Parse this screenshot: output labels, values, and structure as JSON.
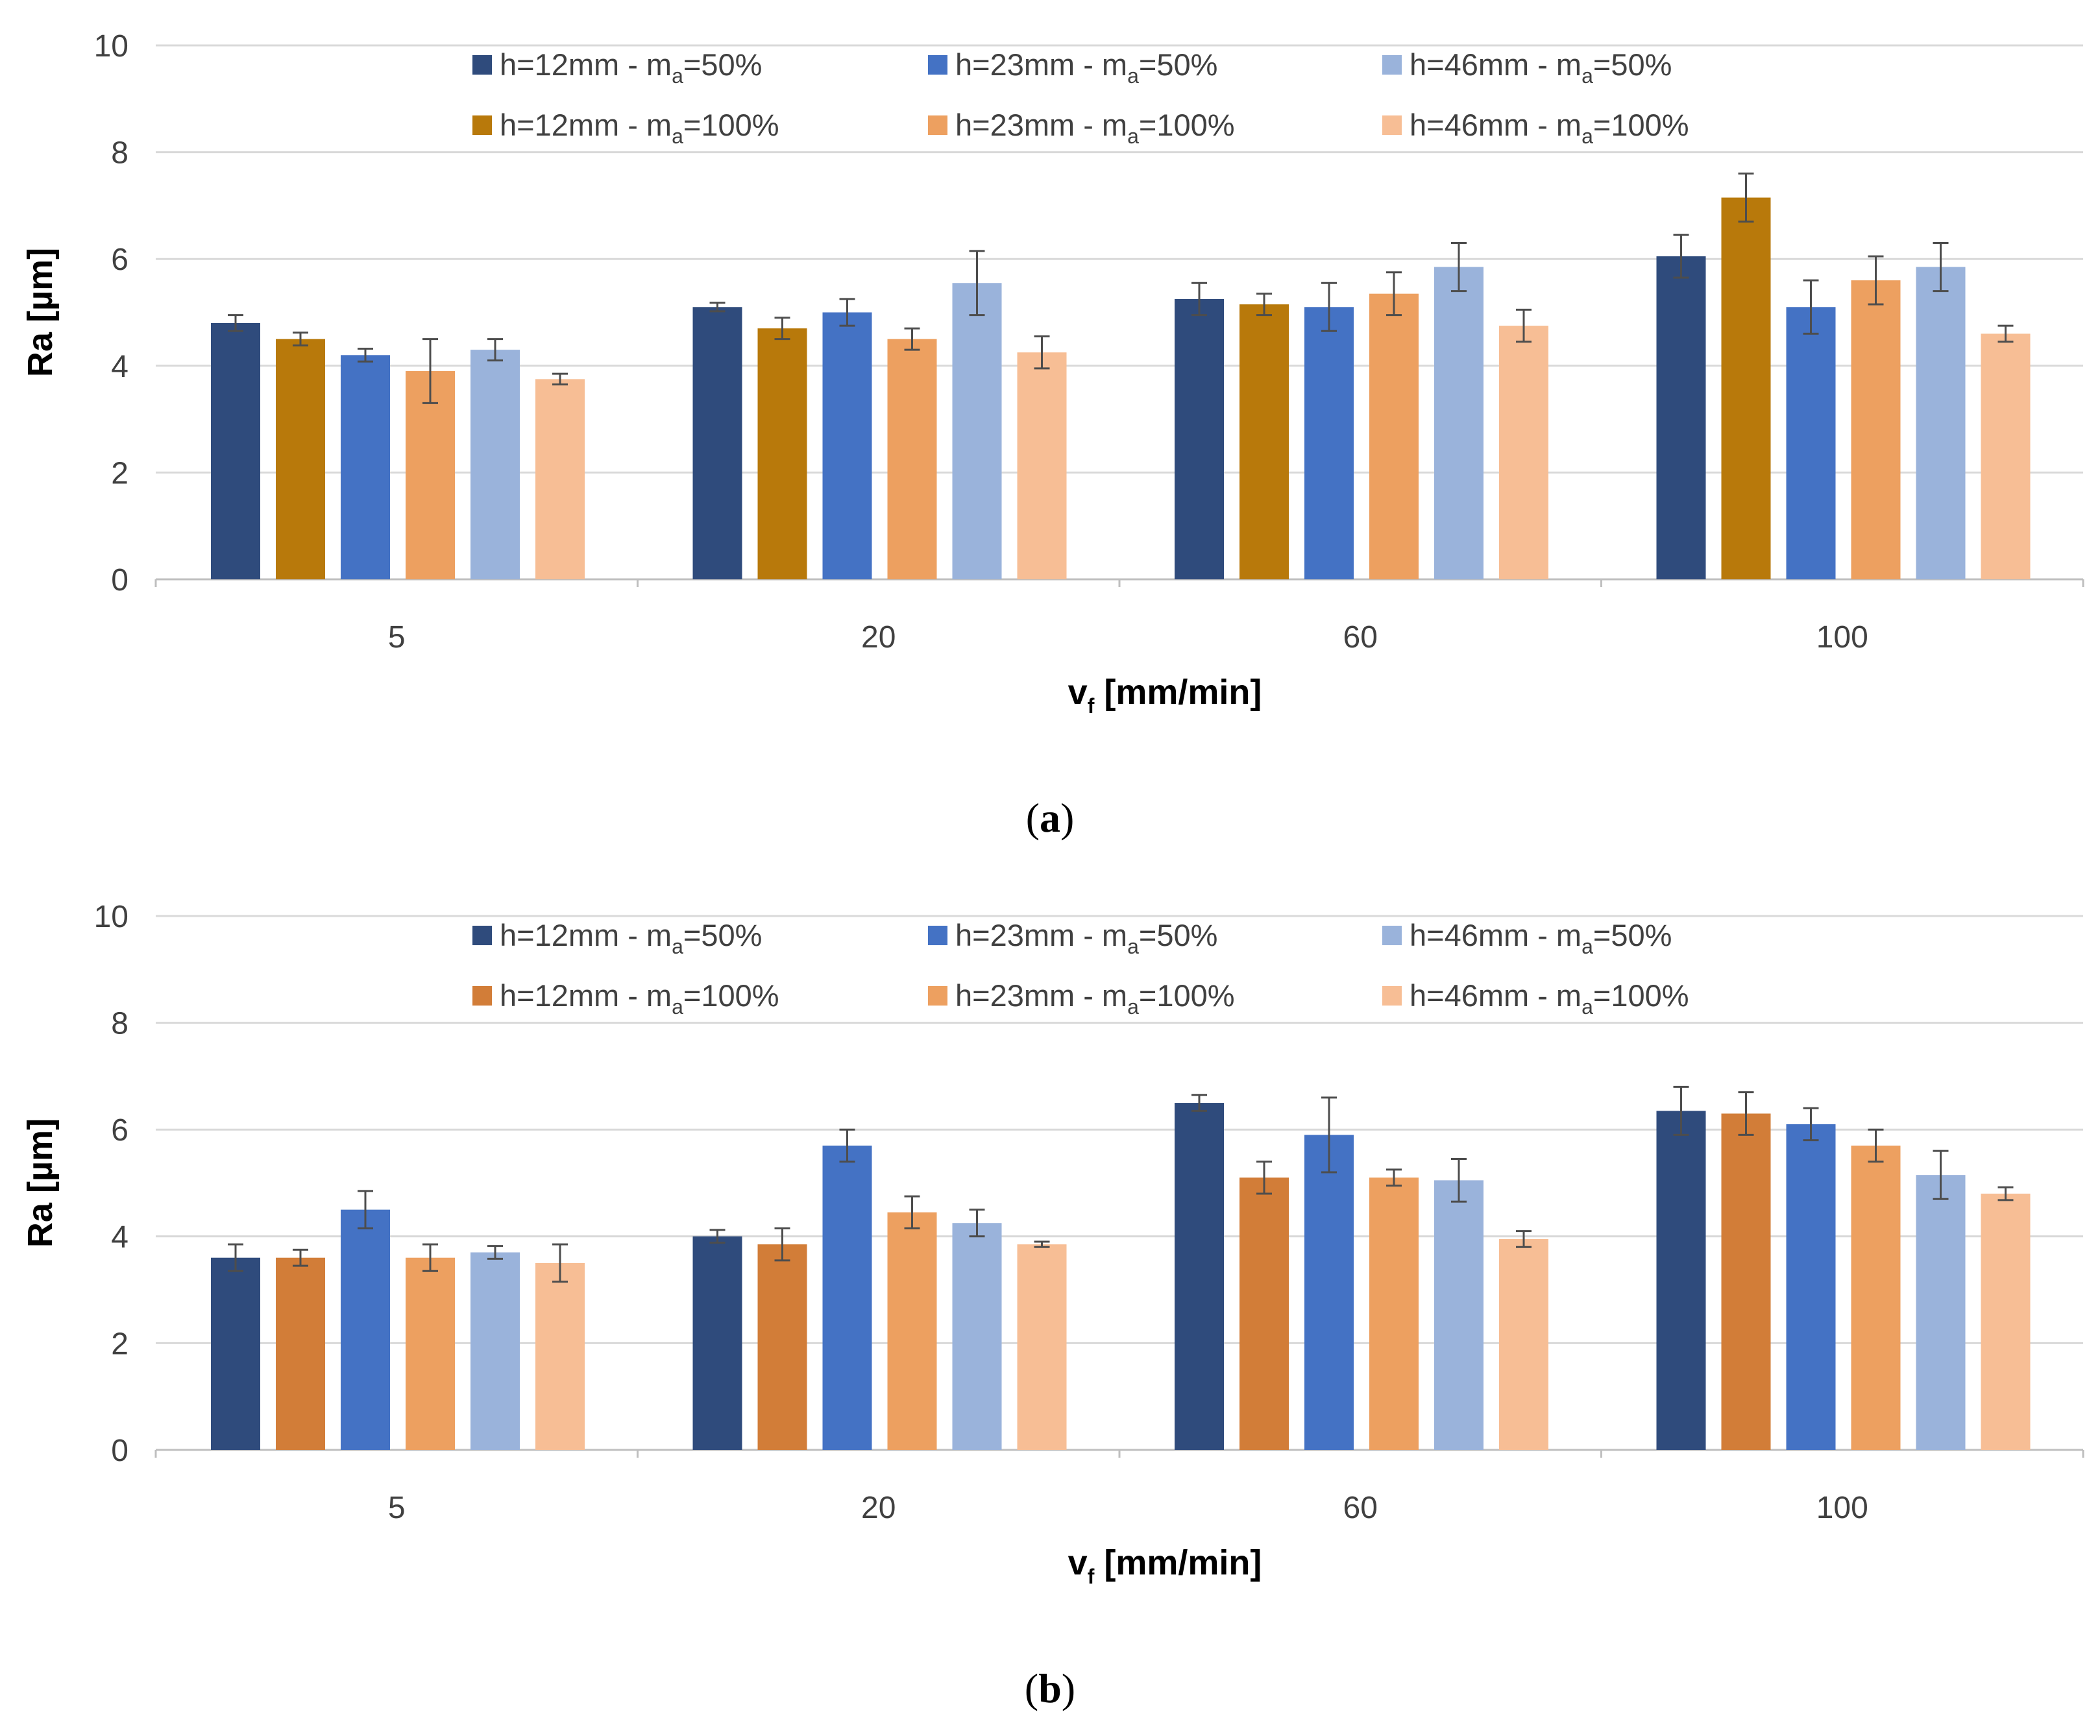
{
  "colors": {
    "h12_50": "#2F4B7C",
    "h23_50": "#4472C4",
    "h46_50": "#9AB3DB",
    "h12_100_a": "#B8790B",
    "h12_100_b": "#D27D38",
    "h23_100": "#EDA060",
    "h46_100": "#F7BE95",
    "grid": "#D9D9D9",
    "axis": "#BFBFBF",
    "error": "#4D4D4D"
  },
  "legend_entries": [
    {
      "label_main": "h=12mm - m",
      "label_sub": "a",
      "label_tail": "=50%"
    },
    {
      "label_main": "h=23mm - m",
      "label_sub": "a",
      "label_tail": "=50%"
    },
    {
      "label_main": "h=46mm - m",
      "label_sub": "a",
      "label_tail": "=50%"
    },
    {
      "label_main": "h=12mm - m",
      "label_sub": "a",
      "label_tail": "=100%"
    },
    {
      "label_main": "h=23mm - m",
      "label_sub": "a",
      "label_tail": "=100%"
    },
    {
      "label_main": "h=46mm - m",
      "label_sub": "a",
      "label_tail": "=100%"
    }
  ],
  "panels": [
    {
      "caption_open": "(",
      "caption_letter": "a",
      "caption_close": ")",
      "xlabel_main": "v",
      "xlabel_sub": "f",
      "xlabel_tail": " [mm/min]",
      "ylabel": "Ra [µm]"
    },
    {
      "caption_open": "(",
      "caption_letter": "b",
      "caption_close": ")",
      "xlabel_main": "v",
      "xlabel_sub": "f",
      "xlabel_tail": " [mm/min]",
      "ylabel": "Ra [µm]"
    }
  ],
  "chart_data": [
    {
      "type": "bar",
      "title": "",
      "xlabel": "vf [mm/min]",
      "ylabel": "Ra [µm]",
      "ylim": [
        0,
        10
      ],
      "yticks": [
        0,
        2,
        4,
        6,
        8,
        10
      ],
      "categories": [
        "5",
        "20",
        "60",
        "100"
      ],
      "legend_position": "top",
      "series": [
        {
          "name": "h=12mm - ma=50%",
          "color_key": "h12_50",
          "values": [
            4.8,
            5.1,
            5.25,
            6.05
          ],
          "errors": [
            0.15,
            0.08,
            0.3,
            0.4
          ]
        },
        {
          "name": "h=12mm - ma=100%",
          "color_key": "h12_100_a",
          "values": [
            4.5,
            4.7,
            5.15,
            7.15
          ],
          "errors": [
            0.12,
            0.2,
            0.2,
            0.45
          ]
        },
        {
          "name": "h=23mm - ma=50%",
          "color_key": "h23_50",
          "values": [
            4.2,
            5.0,
            5.1,
            5.1
          ],
          "errors": [
            0.12,
            0.25,
            0.45,
            0.5
          ]
        },
        {
          "name": "h=23mm - ma=100%",
          "color_key": "h23_100",
          "values": [
            3.9,
            4.5,
            5.35,
            5.6
          ],
          "errors": [
            0.6,
            0.2,
            0.4,
            0.45
          ]
        },
        {
          "name": "h=46mm - ma=50%",
          "color_key": "h46_50",
          "values": [
            4.3,
            5.55,
            5.85,
            5.85
          ],
          "errors": [
            0.2,
            0.6,
            0.45,
            0.45
          ]
        },
        {
          "name": "h=46mm - ma=100%",
          "color_key": "h46_100",
          "values": [
            3.75,
            4.25,
            4.75,
            4.6
          ],
          "errors": [
            0.1,
            0.3,
            0.3,
            0.15
          ]
        }
      ]
    },
    {
      "type": "bar",
      "title": "",
      "xlabel": "vf [mm/min]",
      "ylabel": "Ra [µm]",
      "ylim": [
        0,
        10
      ],
      "yticks": [
        0,
        2,
        4,
        6,
        8,
        10
      ],
      "categories": [
        "5",
        "20",
        "60",
        "100"
      ],
      "legend_position": "top",
      "series": [
        {
          "name": "h=12mm - ma=50%",
          "color_key": "h12_50",
          "values": [
            3.6,
            4.0,
            6.5,
            6.35
          ],
          "errors": [
            0.25,
            0.12,
            0.15,
            0.45
          ]
        },
        {
          "name": "h=12mm - ma=100%",
          "color_key": "h12_100_b",
          "values": [
            3.6,
            3.85,
            5.1,
            6.3
          ],
          "errors": [
            0.15,
            0.3,
            0.3,
            0.4
          ]
        },
        {
          "name": "h=23mm - ma=50%",
          "color_key": "h23_50",
          "values": [
            4.5,
            5.7,
            5.9,
            6.1
          ],
          "errors": [
            0.35,
            0.3,
            0.7,
            0.3
          ]
        },
        {
          "name": "h=23mm - ma=100%",
          "color_key": "h23_100",
          "values": [
            3.6,
            4.45,
            5.1,
            5.7
          ],
          "errors": [
            0.25,
            0.3,
            0.15,
            0.3
          ]
        },
        {
          "name": "h=46mm - ma=50%",
          "color_key": "h46_50",
          "values": [
            3.7,
            4.25,
            5.05,
            5.15
          ],
          "errors": [
            0.12,
            0.25,
            0.4,
            0.45
          ]
        },
        {
          "name": "h=46mm - ma=100%",
          "color_key": "h46_100",
          "values": [
            3.5,
            3.85,
            3.95,
            4.8
          ],
          "errors": [
            0.35,
            0.05,
            0.15,
            0.12
          ]
        }
      ]
    }
  ]
}
